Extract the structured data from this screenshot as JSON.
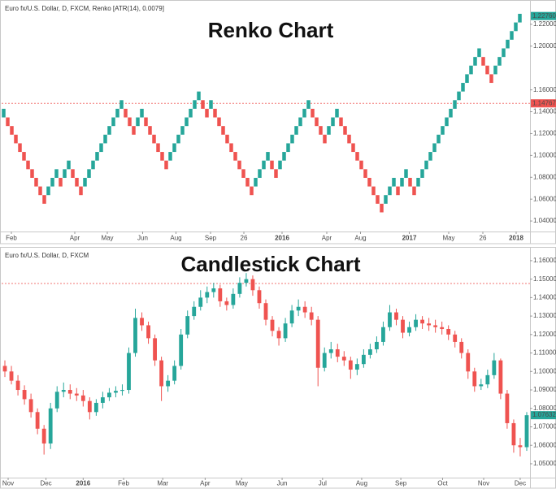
{
  "chart_data": [
    {
      "type": "renko",
      "title": "Renko Chart",
      "subtitle": "Euro fx/U.S. Dollar, D, FXCM, Renko [ATR(14), 0.0079]",
      "brick_size": 0.0079,
      "up_color": "#26a69a",
      "down_color": "#ef5350",
      "values": [
        1.1427,
        1.1269,
        1.119,
        1.1111,
        1.1032,
        1.0953,
        1.0874,
        1.0795,
        1.0716,
        1.0637,
        1.0558,
        1.0716,
        1.0795,
        1.0874,
        1.0716,
        1.0874,
        1.0953,
        1.0795,
        1.0716,
        1.0637,
        1.0795,
        1.0874,
        1.0953,
        1.1032,
        1.1111,
        1.119,
        1.1269,
        1.1348,
        1.1427,
        1.1506,
        1.1348,
        1.1269,
        1.119,
        1.1348,
        1.1427,
        1.1269,
        1.119,
        1.1111,
        1.1032,
        1.0953,
        1.0874,
        1.1032,
        1.1111,
        1.119,
        1.1269,
        1.1348,
        1.1427,
        1.1506,
        1.1585,
        1.1427,
        1.1348,
        1.1506,
        1.1348,
        1.1269,
        1.119,
        1.1111,
        1.1032,
        1.0953,
        1.0874,
        1.0795,
        1.0716,
        1.0637,
        1.0795,
        1.0874,
        1.0953,
        1.1032,
        1.0874,
        1.0795,
        1.0953,
        1.1032,
        1.1111,
        1.119,
        1.1269,
        1.1348,
        1.1427,
        1.1506,
        1.1348,
        1.1269,
        1.119,
        1.1111,
        1.1269,
        1.1348,
        1.1427,
        1.1269,
        1.119,
        1.1111,
        1.1032,
        1.0953,
        1.0874,
        1.0795,
        1.0716,
        1.0637,
        1.0558,
        1.0479,
        1.0637,
        1.0716,
        1.0795,
        1.0637,
        1.0795,
        1.0874,
        1.0716,
        1.0637,
        1.0795,
        1.0874,
        1.0953,
        1.1032,
        1.1111,
        1.119,
        1.1269,
        1.1348,
        1.1427,
        1.1506,
        1.1585,
        1.1664,
        1.1743,
        1.1822,
        1.1901,
        1.198,
        1.1822,
        1.1743,
        1.1664,
        1.1822,
        1.1901,
        1.198,
        1.2059,
        1.2138,
        1.2217,
        1.2296
      ],
      "xlim": [
        0,
        130
      ],
      "xticks": [
        {
          "value": 2.4,
          "label": "Feb"
        },
        {
          "value": 18,
          "label": "Apr"
        },
        {
          "value": 26,
          "label": "May"
        },
        {
          "value": 34.7,
          "label": "Jun"
        },
        {
          "value": 42.9,
          "label": "Aug"
        },
        {
          "value": 51.4,
          "label": "Sep"
        },
        {
          "value": 59.6,
          "label": "26"
        },
        {
          "value": 69,
          "label": "2016"
        },
        {
          "value": 80,
          "label": "Apr"
        },
        {
          "value": 88.3,
          "label": "Aug"
        },
        {
          "value": 100.3,
          "label": "2017"
        },
        {
          "value": 110,
          "label": "May"
        },
        {
          "value": 118.4,
          "label": "26"
        },
        {
          "value": 126.6,
          "label": "2018"
        }
      ],
      "ylim": [
        1.0304,
        1.2415
      ],
      "yticks": [
        {
          "value": 1.04,
          "label": "1.04000"
        },
        {
          "value": 1.06,
          "label": "1.06000"
        },
        {
          "value": 1.08,
          "label": "1.08000"
        },
        {
          "value": 1.1,
          "label": "1.10000"
        },
        {
          "value": 1.12,
          "label": "1.12000"
        },
        {
          "value": 1.14,
          "label": "1.14000"
        },
        {
          "value": 1.16,
          "label": "1.16000"
        },
        {
          "value": 1.2,
          "label": "1.20000"
        },
        {
          "value": 1.22,
          "label": "1.22000"
        }
      ],
      "hline": {
        "value": 1.14767,
        "label": "1.14767"
      },
      "last_value": {
        "value": 1.2276,
        "label": "1.22760"
      }
    },
    {
      "type": "candlestick",
      "title": "Candlestick Chart",
      "subtitle": "Euro fx/U.S. Dollar, D, FXCM",
      "up_color": "#26a69a",
      "down_color": "#ef5350",
      "open": [
        1.103,
        1.1,
        1.095,
        1.09,
        1.085,
        1.078,
        1.069,
        1.061,
        1.08,
        1.089,
        1.09,
        1.088,
        1.087,
        1.084,
        1.078,
        1.083,
        1.086,
        1.0885,
        1.0895,
        1.09,
        1.11,
        1.129,
        1.125,
        1.118,
        1.106,
        1.092,
        1.095,
        1.103,
        1.12,
        1.13,
        1.135,
        1.14,
        1.143,
        1.145,
        1.138,
        1.136,
        1.142,
        1.148,
        1.15,
        1.144,
        1.137,
        1.128,
        1.122,
        1.118,
        1.126,
        1.133,
        1.135,
        1.132,
        1.128,
        1.102,
        1.11,
        1.112,
        1.108,
        1.106,
        1.101,
        1.104,
        1.109,
        1.112,
        1.116,
        1.124,
        1.132,
        1.128,
        1.121,
        1.124,
        1.128,
        1.126,
        1.125,
        1.124,
        1.123,
        1.12,
        1.116,
        1.11,
        1.1,
        1.092,
        1.093,
        1.098,
        1.106,
        1.088,
        1.072,
        1.06,
        1.059
      ],
      "high": [
        1.106,
        1.103,
        1.098,
        1.0925,
        1.088,
        1.08,
        1.071,
        1.083,
        1.092,
        1.094,
        1.093,
        1.091,
        1.09,
        1.086,
        1.085,
        1.089,
        1.091,
        1.092,
        1.093,
        1.113,
        1.134,
        1.132,
        1.127,
        1.12,
        1.108,
        1.098,
        1.106,
        1.123,
        1.133,
        1.138,
        1.144,
        1.146,
        1.148,
        1.147,
        1.14,
        1.145,
        1.151,
        1.156,
        1.152,
        1.146,
        1.139,
        1.13,
        1.124,
        1.129,
        1.136,
        1.139,
        1.138,
        1.135,
        1.13,
        1.113,
        1.116,
        1.115,
        1.111,
        1.108,
        1.107,
        1.112,
        1.115,
        1.119,
        1.127,
        1.136,
        1.134,
        1.13,
        1.127,
        1.131,
        1.13,
        1.129,
        1.128,
        1.127,
        1.125,
        1.122,
        1.118,
        1.112,
        1.102,
        1.096,
        1.101,
        1.11,
        1.107,
        1.09,
        1.074,
        1.064,
        1.078
      ],
      "low": [
        1.097,
        1.093,
        1.087,
        1.082,
        1.075,
        1.066,
        1.055,
        1.058,
        1.078,
        1.086,
        1.085,
        1.084,
        1.081,
        1.074,
        1.076,
        1.08,
        1.084,
        1.086,
        1.087,
        1.088,
        1.108,
        1.122,
        1.115,
        1.103,
        1.084,
        1.089,
        1.093,
        1.101,
        1.118,
        1.128,
        1.133,
        1.137,
        1.14,
        1.135,
        1.133,
        1.134,
        1.14,
        1.146,
        1.141,
        1.134,
        1.125,
        1.119,
        1.114,
        1.116,
        1.124,
        1.13,
        1.129,
        1.125,
        1.092,
        1.1,
        1.107,
        1.105,
        1.103,
        1.096,
        1.098,
        1.102,
        1.107,
        1.11,
        1.114,
        1.122,
        1.125,
        1.118,
        1.119,
        1.122,
        1.123,
        1.122,
        1.121,
        1.12,
        1.117,
        1.113,
        1.107,
        1.096,
        1.089,
        1.09,
        1.091,
        1.096,
        1.085,
        1.069,
        1.056,
        1.054,
        1.057
      ],
      "close": [
        1.1,
        1.095,
        1.09,
        1.085,
        1.078,
        1.069,
        1.061,
        1.08,
        1.089,
        1.09,
        1.088,
        1.087,
        1.084,
        1.078,
        1.083,
        1.086,
        1.0885,
        1.0895,
        1.09,
        1.11,
        1.129,
        1.125,
        1.118,
        1.106,
        1.092,
        1.095,
        1.103,
        1.12,
        1.13,
        1.135,
        1.14,
        1.143,
        1.145,
        1.138,
        1.136,
        1.142,
        1.148,
        1.15,
        1.144,
        1.137,
        1.128,
        1.122,
        1.118,
        1.126,
        1.133,
        1.135,
        1.132,
        1.128,
        1.102,
        1.11,
        1.112,
        1.108,
        1.106,
        1.101,
        1.104,
        1.109,
        1.112,
        1.116,
        1.124,
        1.132,
        1.128,
        1.121,
        1.124,
        1.128,
        1.126,
        1.125,
        1.124,
        1.123,
        1.12,
        1.116,
        1.11,
        1.1,
        1.092,
        1.093,
        1.098,
        1.106,
        1.088,
        1.072,
        1.06,
        1.059,
        1.0763
      ],
      "xlim": [
        0,
        81
      ],
      "xticks": [
        {
          "value": 1.0,
          "label": "Nov"
        },
        {
          "value": 6.8,
          "label": "Dec"
        },
        {
          "value": 12.5,
          "label": "2016"
        },
        {
          "value": 18.7,
          "label": "Feb"
        },
        {
          "value": 24.7,
          "label": "Mar"
        },
        {
          "value": 31.2,
          "label": "Apr"
        },
        {
          "value": 36.8,
          "label": "May"
        },
        {
          "value": 43.0,
          "label": "Jun"
        },
        {
          "value": 49.2,
          "label": "Jul"
        },
        {
          "value": 55.2,
          "label": "Aug"
        },
        {
          "value": 61.2,
          "label": "Sep"
        },
        {
          "value": 67.6,
          "label": "Oct"
        },
        {
          "value": 73.9,
          "label": "Nov"
        },
        {
          "value": 79.5,
          "label": "Dec"
        }
      ],
      "ylim": [
        1.0425,
        1.167
      ],
      "yticks": [
        {
          "value": 1.05,
          "label": "1.05000"
        },
        {
          "value": 1.06,
          "label": "1.06000"
        },
        {
          "value": 1.07,
          "label": "1.07000"
        },
        {
          "value": 1.08,
          "label": "1.08000"
        },
        {
          "value": 1.09,
          "label": "1.09000"
        },
        {
          "value": 1.1,
          "label": "1.10000"
        },
        {
          "value": 1.11,
          "label": "1.11000"
        },
        {
          "value": 1.12,
          "label": "1.12000"
        },
        {
          "value": 1.13,
          "label": "1.13000"
        },
        {
          "value": 1.14,
          "label": "1.14000"
        },
        {
          "value": 1.15,
          "label": "1.15000"
        },
        {
          "value": 1.16,
          "label": "1.16000"
        }
      ],
      "hline": {
        "value": 1.14767
      },
      "last_value": {
        "value": 1.07632,
        "label": "1.07632"
      }
    }
  ]
}
